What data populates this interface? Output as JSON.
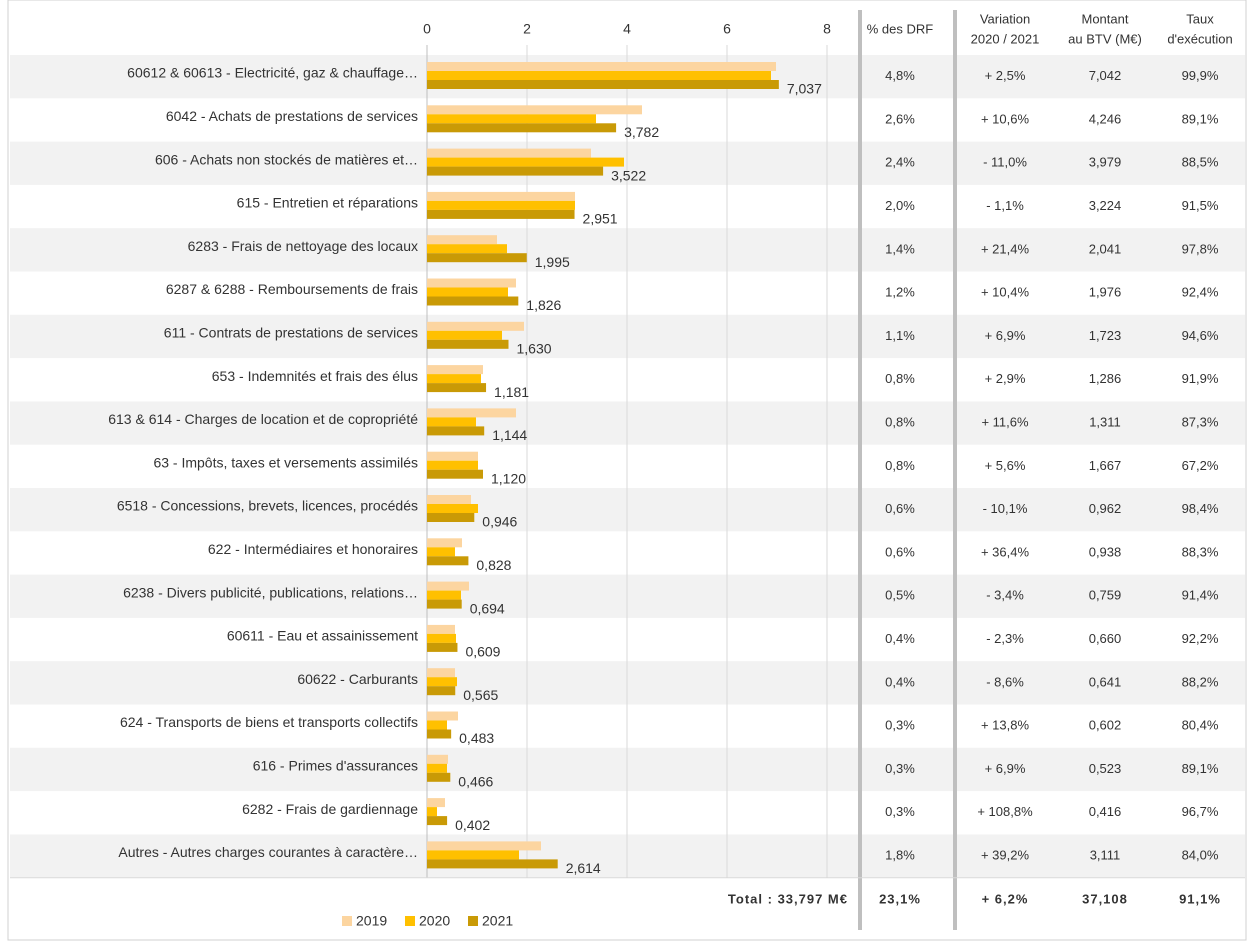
{
  "chart_data": {
    "type": "bar",
    "orientation": "horizontal",
    "categories": [
      "60612 & 60613 - Electricité, gaz & chauffage…",
      "6042 - Achats de prestations de services",
      "606 - Achats non stockés de matières et…",
      "615 - Entretien et réparations",
      "6283 - Frais de nettoyage des locaux",
      "6287 & 6288 - Remboursements de frais",
      "611 - Contrats de prestations de services",
      "653 - Indemnités et frais des élus",
      "613 & 614 - Charges de location et de copropriété",
      "63 - Impôts, taxes et versements assimilés",
      "6518 - Concessions, brevets, licences, procédés",
      "622 - Intermédiaires et honoraires",
      "6238 - Divers publicité, publications, relations…",
      "60611 - Eau et assainissement",
      "60622 - Carburants",
      "624 - Transports de biens et transports collectifs",
      "616 - Primes d'assurances",
      "6282 - Frais de gardiennage",
      "Autres - Autres charges courantes à caractère…"
    ],
    "series": [
      {
        "name": "2019",
        "color": "#fcd5a0",
        "values": [
          6.98,
          4.3,
          3.28,
          2.96,
          1.4,
          1.78,
          1.94,
          1.12,
          1.78,
          1.02,
          0.88,
          0.7,
          0.84,
          0.56,
          0.56,
          0.62,
          0.42,
          0.36,
          2.28
        ]
      },
      {
        "name": "2020",
        "color": "#ffc000",
        "values": [
          6.88,
          3.38,
          3.94,
          2.96,
          1.6,
          1.62,
          1.5,
          1.08,
          0.98,
          1.02,
          1.02,
          0.56,
          0.68,
          0.58,
          0.6,
          0.4,
          0.4,
          0.2,
          1.84
        ]
      },
      {
        "name": "2021",
        "color": "#c99a06",
        "values": [
          7.037,
          3.782,
          3.522,
          2.951,
          1.995,
          1.826,
          1.63,
          1.181,
          1.144,
          1.12,
          0.946,
          0.828,
          0.694,
          0.609,
          0.565,
          0.483,
          0.466,
          0.402,
          2.614
        ],
        "value_labels": [
          "7,037",
          "3,782",
          "3,522",
          "2,951",
          "1,995",
          "1,826",
          "1,630",
          "1,181",
          "1,144",
          "1,120",
          "0,946",
          "0,828",
          "0,694",
          "0,609",
          "0,565",
          "0,483",
          "0,466",
          "0,402",
          "2,614"
        ]
      }
    ],
    "xlim": [
      0,
      8.4
    ],
    "xticks": [
      0,
      2,
      4,
      6,
      8
    ],
    "grid": true,
    "legend": "bottom"
  },
  "table": {
    "columns": [
      [
        "% des DRF"
      ],
      [
        "Variation",
        "2020 / 2021"
      ],
      [
        "Montant",
        "au BTV (M€)"
      ],
      [
        "Taux",
        "d'exécution"
      ]
    ],
    "rows": [
      [
        "4,8%",
        "+ 2,5%",
        "7,042",
        "99,9%"
      ],
      [
        "2,6%",
        "+ 10,6%",
        "4,246",
        "89,1%"
      ],
      [
        "2,4%",
        "- 11,0%",
        "3,979",
        "88,5%"
      ],
      [
        "2,0%",
        "- 1,1%",
        "3,224",
        "91,5%"
      ],
      [
        "1,4%",
        "+ 21,4%",
        "2,041",
        "97,8%"
      ],
      [
        "1,2%",
        "+ 10,4%",
        "1,976",
        "92,4%"
      ],
      [
        "1,1%",
        "+ 6,9%",
        "1,723",
        "94,6%"
      ],
      [
        "0,8%",
        "+ 2,9%",
        "1,286",
        "91,9%"
      ],
      [
        "0,8%",
        "+ 11,6%",
        "1,311",
        "87,3%"
      ],
      [
        "0,8%",
        "+ 5,6%",
        "1,667",
        "67,2%"
      ],
      [
        "0,6%",
        "- 10,1%",
        "0,962",
        "98,4%"
      ],
      [
        "0,6%",
        "+ 36,4%",
        "0,938",
        "88,3%"
      ],
      [
        "0,5%",
        "- 3,4%",
        "0,759",
        "91,4%"
      ],
      [
        "0,4%",
        "- 2,3%",
        "0,660",
        "92,2%"
      ],
      [
        "0,4%",
        "- 8,6%",
        "0,641",
        "88,2%"
      ],
      [
        "0,3%",
        "+ 13,8%",
        "0,602",
        "80,4%"
      ],
      [
        "0,3%",
        "+ 6,9%",
        "0,523",
        "89,1%"
      ],
      [
        "0,3%",
        "+ 108,8%",
        "0,416",
        "96,7%"
      ],
      [
        "1,8%",
        "+ 39,2%",
        "3,111",
        "84,0%"
      ]
    ],
    "total": {
      "label": "Total : 33,797 M€",
      "values": [
        "23,1%",
        "+ 6,2%",
        "37,108",
        "91,1%"
      ]
    }
  }
}
